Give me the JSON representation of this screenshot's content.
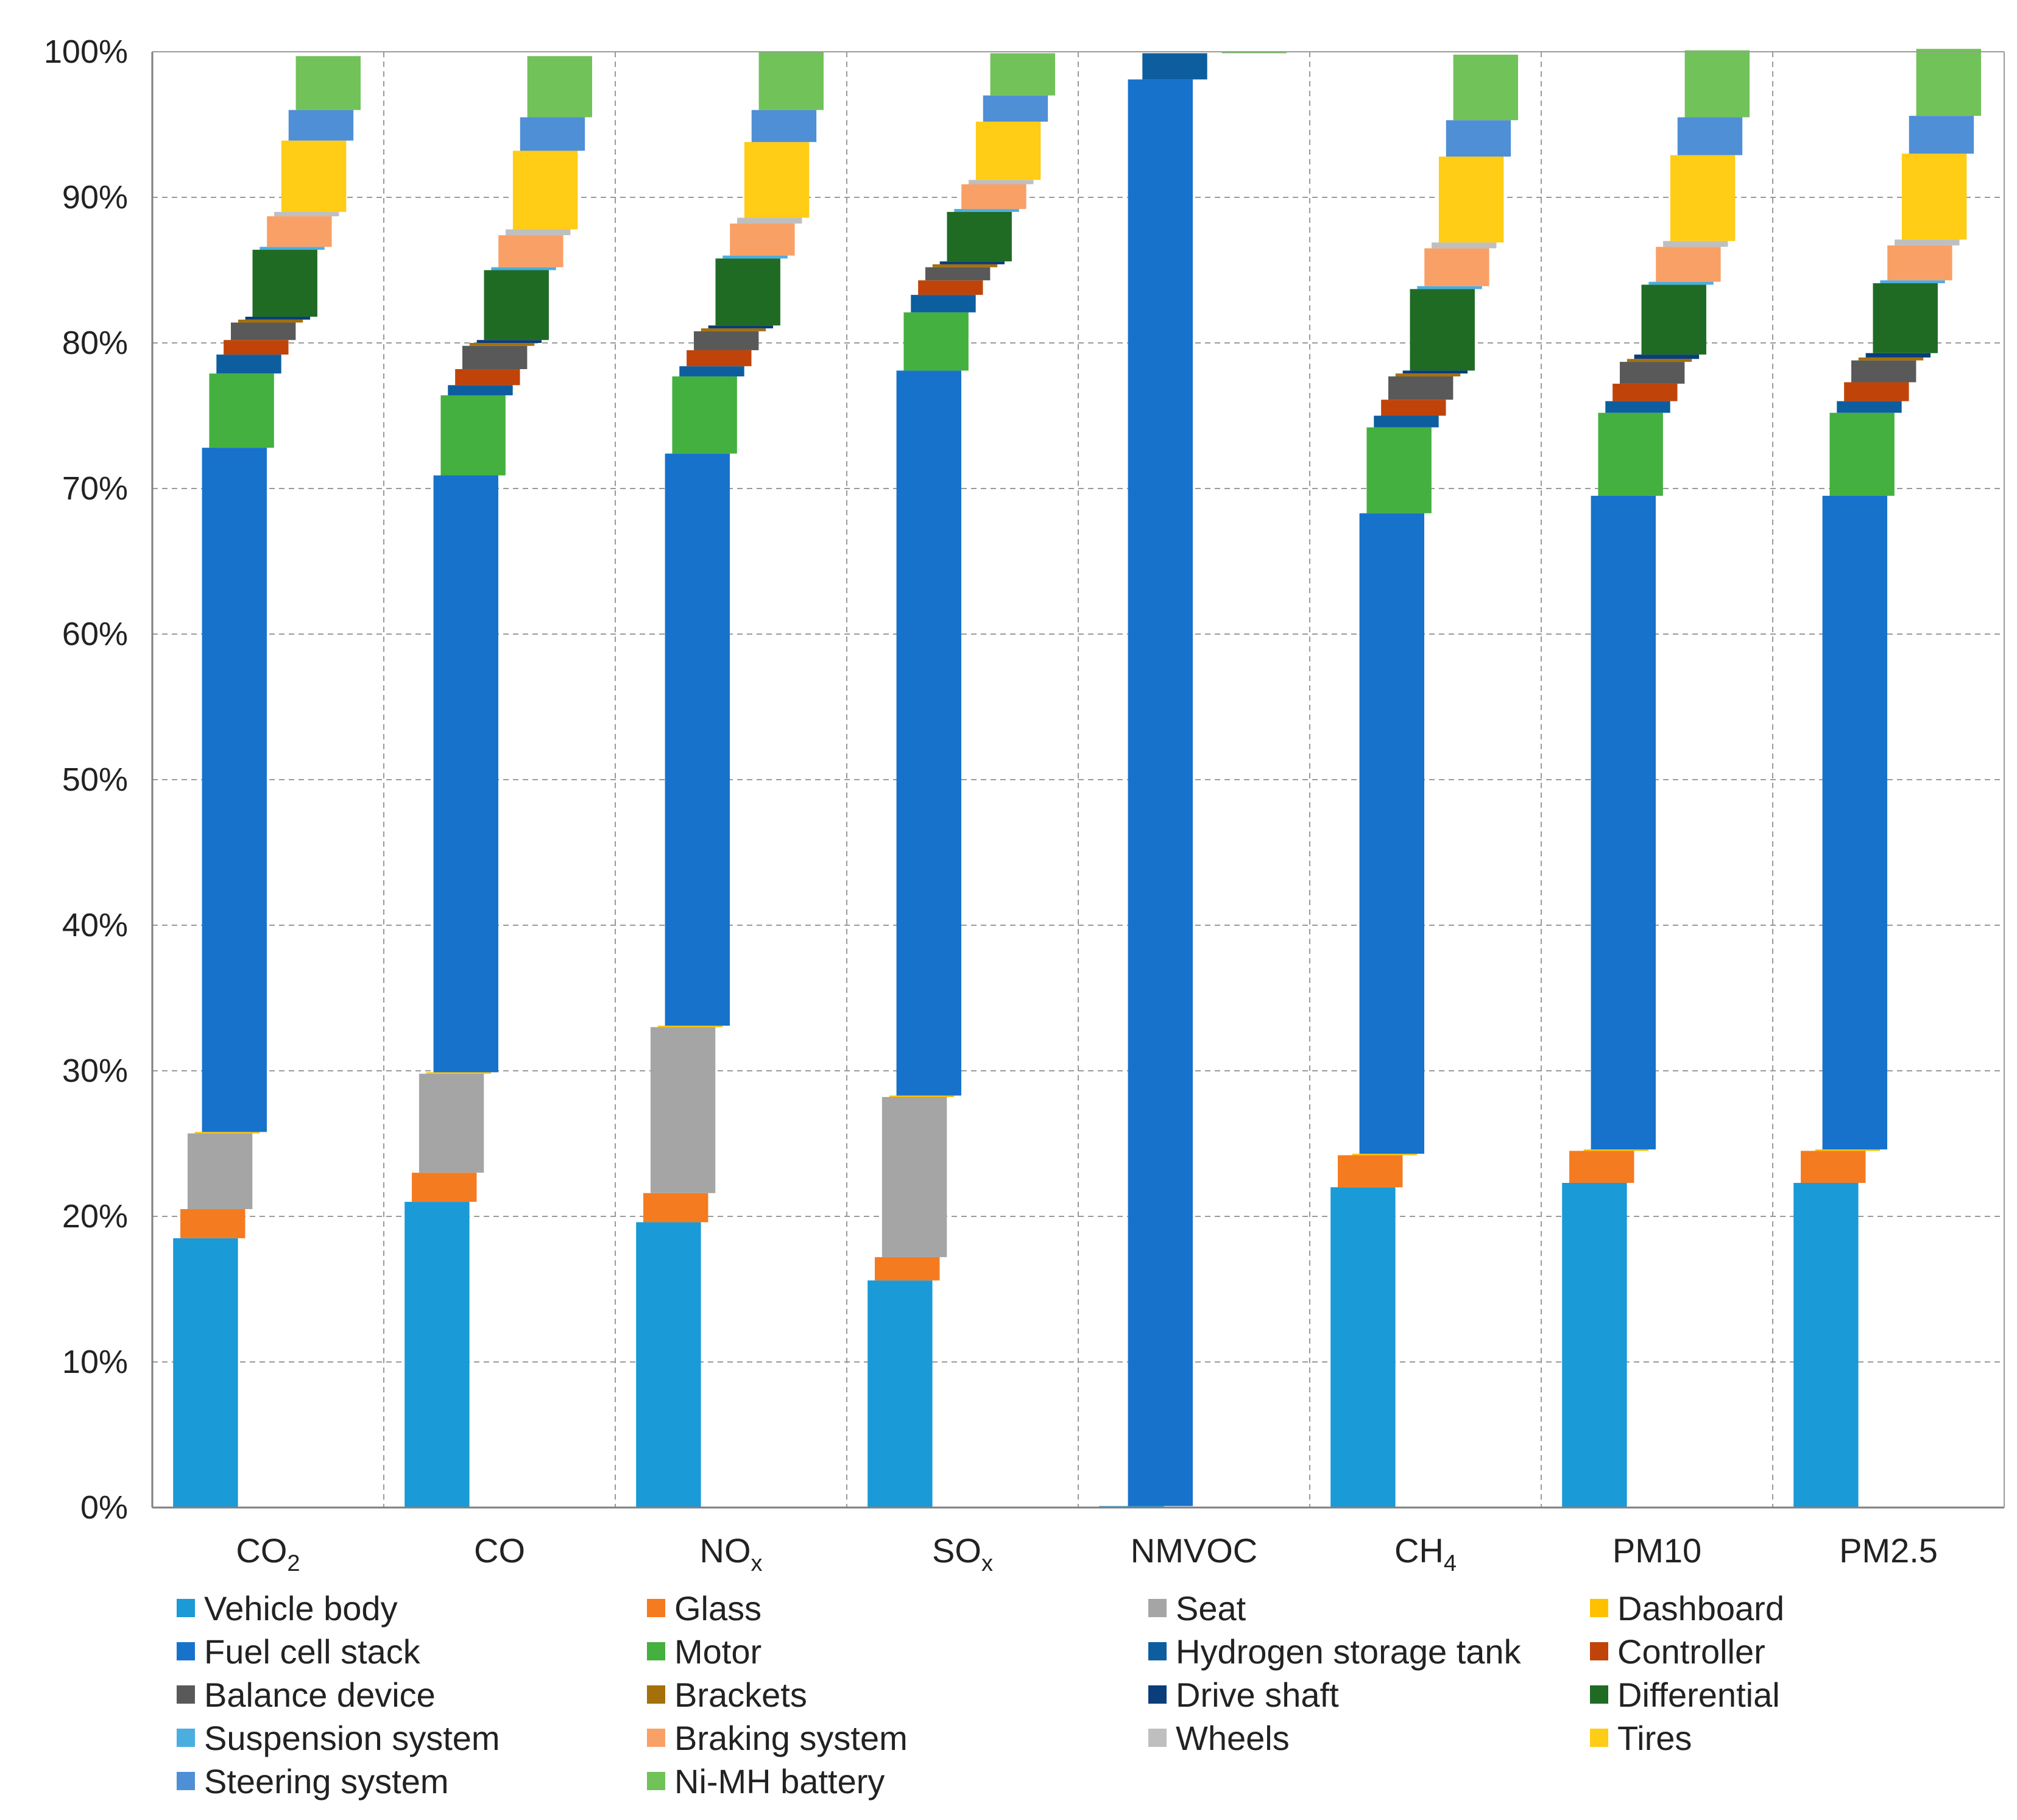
{
  "chart_data": {
    "type": "bar",
    "subtype": "waterfall-stacked-100-percent",
    "title": "",
    "xlabel": "",
    "ylabel": "",
    "ylim": [
      0,
      100
    ],
    "y_ticks": [
      "0%",
      "10%",
      "20%",
      "30%",
      "40%",
      "50%",
      "60%",
      "70%",
      "80%",
      "90%",
      "100%"
    ],
    "grid": true,
    "legend_position": "bottom",
    "categories": [
      "CO2",
      "CO",
      "NOx",
      "SOx",
      "NMVOC",
      "CH4",
      "PM10",
      "PM2.5"
    ],
    "category_labels": [
      {
        "base": "CO",
        "sub": "2"
      },
      {
        "base": "CO",
        "sub": ""
      },
      {
        "base": "NO",
        "sub": "x"
      },
      {
        "base": "SO",
        "sub": "x"
      },
      {
        "base": "NMVOC",
        "sub": ""
      },
      {
        "base": "CH",
        "sub": "4"
      },
      {
        "base": "PM10",
        "sub": ""
      },
      {
        "base": "PM2.5",
        "sub": ""
      }
    ],
    "series": [
      {
        "name": "Vehicle body",
        "color": "#1a9ad6",
        "values": [
          18.5,
          21.0,
          19.6,
          15.6,
          0.1,
          22.0,
          22.3,
          22.3
        ]
      },
      {
        "name": "Glass",
        "color": "#f47b20",
        "values": [
          2.0,
          2.0,
          2.0,
          1.6,
          0.0,
          2.2,
          2.2,
          2.2
        ]
      },
      {
        "name": "Seat",
        "color": "#a5a5a5",
        "values": [
          5.2,
          6.8,
          11.4,
          11.0,
          0.0,
          0.0,
          0.0,
          0.0
        ]
      },
      {
        "name": "Dashboard",
        "color": "#ffc000",
        "values": [
          0.1,
          0.1,
          0.1,
          0.1,
          0.0,
          0.1,
          0.1,
          0.1
        ]
      },
      {
        "name": "Fuel cell stack",
        "color": "#1772cc",
        "values": [
          47.0,
          41.0,
          39.3,
          49.8,
          98.0,
          44.0,
          44.9,
          44.9
        ]
      },
      {
        "name": "Motor",
        "color": "#44b03f",
        "values": [
          5.1,
          5.5,
          5.3,
          4.0,
          0.0,
          5.9,
          5.7,
          5.7
        ]
      },
      {
        "name": "Hydrogen storage tank",
        "color": "#0d5e9e",
        "values": [
          1.3,
          0.7,
          0.7,
          1.2,
          1.8,
          0.8,
          0.8,
          0.8
        ]
      },
      {
        "name": "Controller",
        "color": "#c0440a",
        "values": [
          1.0,
          1.1,
          1.1,
          1.0,
          0.0,
          1.1,
          1.2,
          1.3
        ]
      },
      {
        "name": "Balance device",
        "color": "#595959",
        "values": [
          1.2,
          1.6,
          1.3,
          0.9,
          0.0,
          1.6,
          1.5,
          1.5
        ]
      },
      {
        "name": "Brackets",
        "color": "#a5700a",
        "values": [
          0.2,
          0.2,
          0.2,
          0.2,
          0.0,
          0.2,
          0.2,
          0.2
        ]
      },
      {
        "name": "Drive shaft",
        "color": "#0a3d7a",
        "values": [
          0.2,
          0.2,
          0.2,
          0.2,
          0.0,
          0.2,
          0.3,
          0.3
        ]
      },
      {
        "name": "Differential",
        "color": "#1f6b24",
        "values": [
          4.6,
          4.8,
          4.6,
          3.4,
          0.0,
          5.6,
          4.8,
          4.8
        ]
      },
      {
        "name": "Suspension system",
        "color": "#4aaee0",
        "values": [
          0.2,
          0.2,
          0.2,
          0.2,
          0.0,
          0.2,
          0.2,
          0.2
        ]
      },
      {
        "name": "Braking system",
        "color": "#f9a066",
        "values": [
          2.1,
          2.2,
          2.2,
          1.7,
          0.0,
          2.6,
          2.4,
          2.4
        ]
      },
      {
        "name": "Wheels",
        "color": "#bfbfbf",
        "values": [
          0.3,
          0.4,
          0.4,
          0.3,
          0.0,
          0.4,
          0.4,
          0.4
        ]
      },
      {
        "name": "Tires",
        "color": "#ffcc16",
        "values": [
          4.9,
          5.4,
          5.2,
          4.0,
          0.0,
          5.9,
          5.9,
          5.9
        ]
      },
      {
        "name": "Steering system",
        "color": "#4f8fd6",
        "values": [
          2.1,
          2.3,
          2.2,
          1.8,
          0.0,
          2.5,
          2.6,
          2.6
        ]
      },
      {
        "name": "Ni-MH battery",
        "color": "#72c25a",
        "values": [
          3.7,
          4.2,
          4.0,
          2.9,
          0.1,
          4.5,
          4.6,
          4.6
        ]
      }
    ]
  }
}
